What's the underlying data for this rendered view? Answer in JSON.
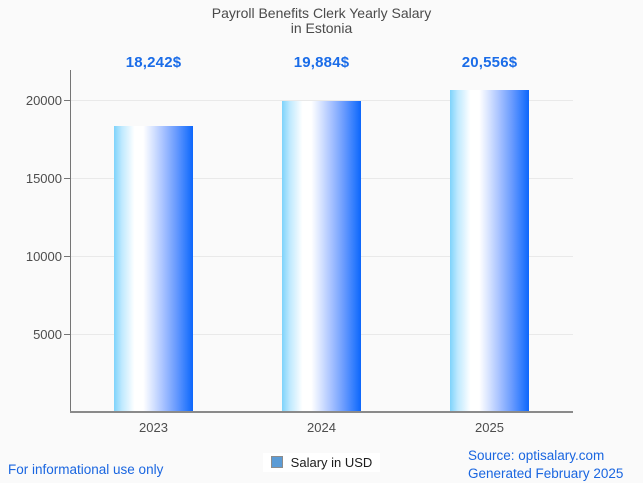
{
  "page": {
    "background_color": "#fafafa",
    "accent_color": "#1a6ce8"
  },
  "chart_data": {
    "type": "bar",
    "title": "Payroll Benefits Clerk Yearly Salary in Estonia",
    "title_lines": [
      "Payroll Benefits Clerk Yearly Salary",
      "in Estonia"
    ],
    "categories": [
      "2023",
      "2024",
      "2025"
    ],
    "values": [
      18242,
      19884,
      20556
    ],
    "value_labels": [
      "18,242$",
      "19,884$",
      "20,556$"
    ],
    "series_name": "Salary in USD",
    "xlabel": "",
    "ylabel": "",
    "ylim": [
      0,
      21900
    ],
    "yticks": [
      5000,
      10000,
      15000,
      20000
    ],
    "ytick_labels": [
      "5000",
      "10000",
      "15000",
      "20000"
    ],
    "grid": true,
    "legend_position": "bottom",
    "colors": {
      "bar_gradient_left": "#7ed3fb",
      "bar_gradient_mid": "#ffffff",
      "bar_gradient_right": "#0c66fb",
      "value_label": "#1a6ce8",
      "legend_marker": "#5b9bd5",
      "axis_text": "#4d4d4d",
      "title_text": "#4a4a4a",
      "gridline": "#e9e9e9",
      "axis_line": "#8a8a8a"
    }
  },
  "footer": {
    "disclaimer": "For informational use only",
    "source": "Source: optisalary.com",
    "generated": "Generated February 2025"
  }
}
